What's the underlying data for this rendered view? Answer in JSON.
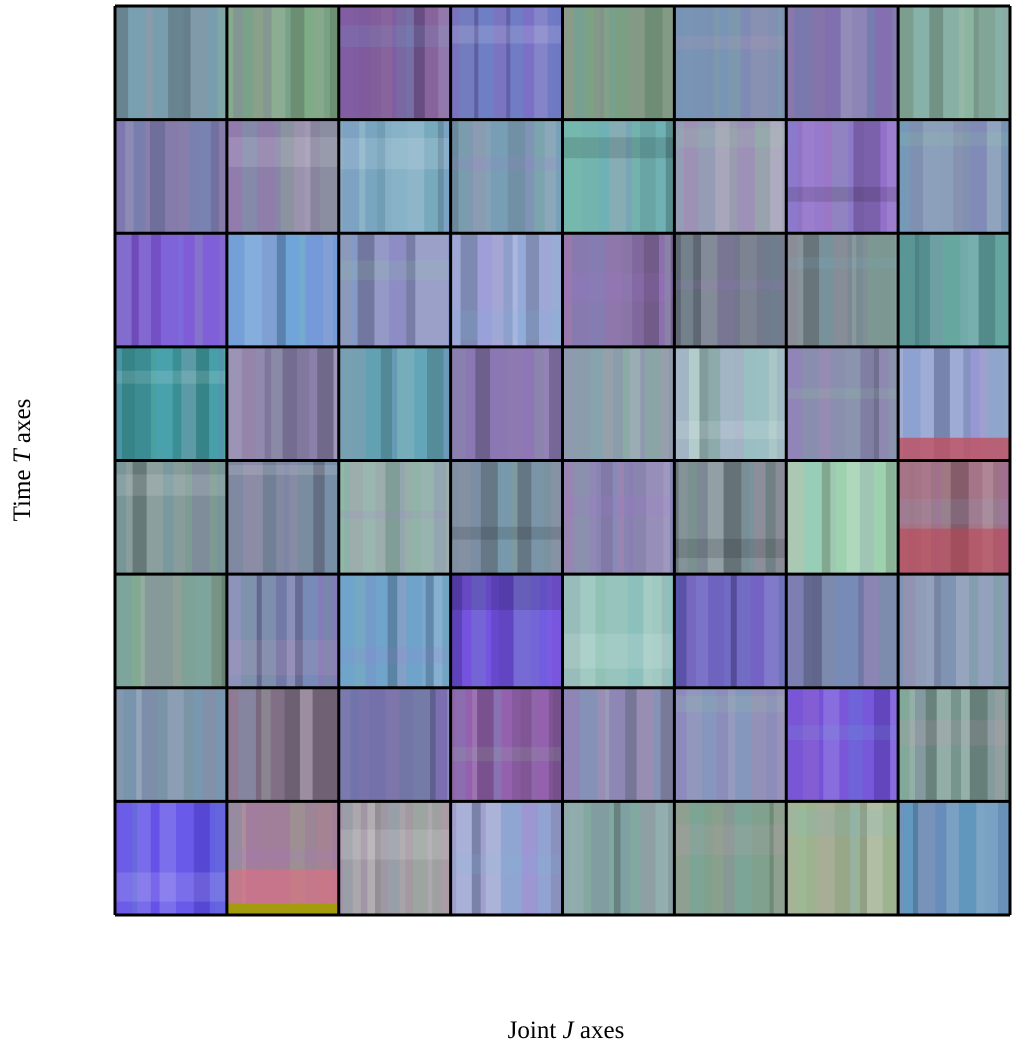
{
  "figure": {
    "y_label": {
      "before": "Time",
      "symbol": "T",
      "after": "axes"
    },
    "x_label": {
      "before": "Joint",
      "symbol": "J",
      "after": "axes"
    }
  }
}
